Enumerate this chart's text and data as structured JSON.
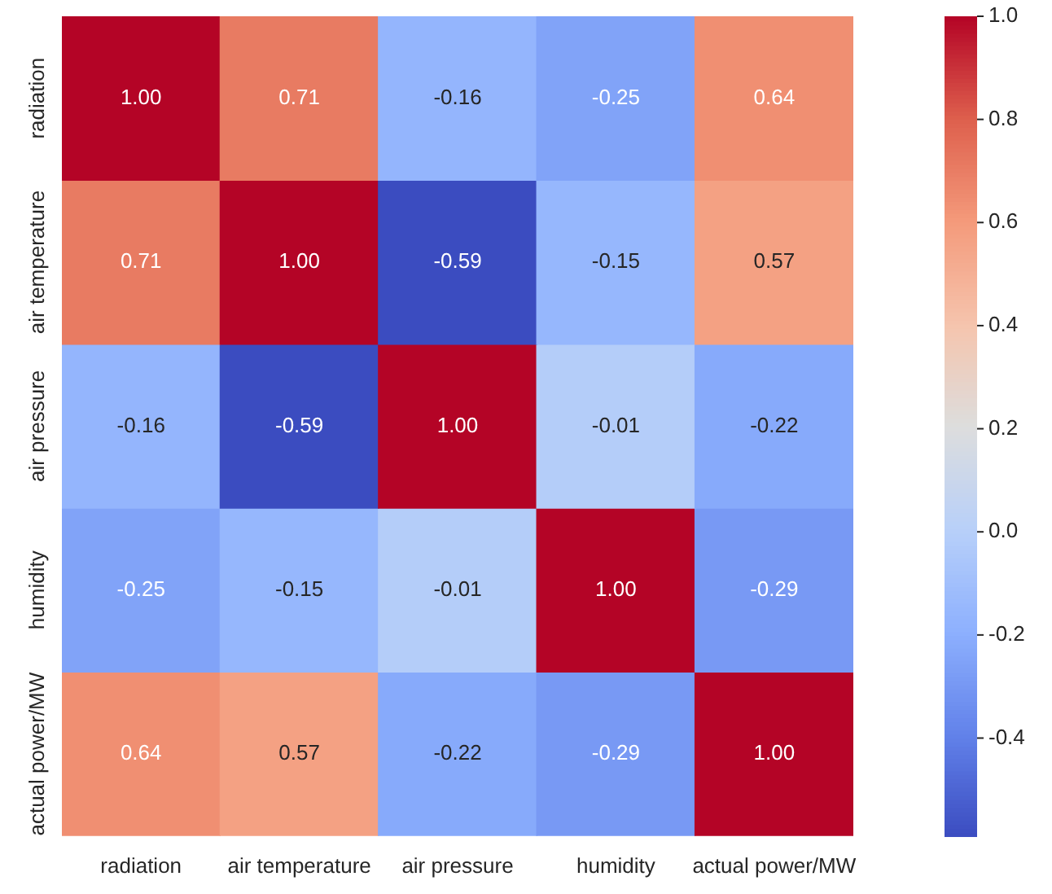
{
  "chart_data": {
    "type": "heatmap",
    "categories": [
      "radiation",
      "air temperature",
      "air pressure",
      "humidity",
      "actual power/MW"
    ],
    "y_categories": [
      "radiation",
      "air temperature",
      "air pressure",
      "humidity",
      "actual power/MW"
    ],
    "cells": [
      [
        1.0,
        0.71,
        -0.16,
        -0.25,
        0.64
      ],
      [
        0.71,
        1.0,
        -0.59,
        -0.15,
        0.57
      ],
      [
        -0.16,
        -0.59,
        1.0,
        -0.01,
        -0.22
      ],
      [
        -0.25,
        -0.15,
        -0.01,
        1.0,
        -0.29
      ],
      [
        0.64,
        0.57,
        -0.22,
        -0.29,
        1.0
      ]
    ],
    "cell_labels": [
      [
        "1.00",
        "0.71",
        "-0.16",
        "-0.25",
        "0.64"
      ],
      [
        "0.71",
        "1.00",
        "-0.59",
        "-0.15",
        "0.57"
      ],
      [
        "-0.16",
        "-0.59",
        "1.00",
        "-0.01",
        "-0.22"
      ],
      [
        "-0.25",
        "-0.15",
        "-0.01",
        "1.00",
        "-0.29"
      ],
      [
        "0.64",
        "0.57",
        "-0.22",
        "-0.29",
        "1.00"
      ]
    ],
    "clim": [
      -0.59,
      1.0
    ],
    "cticks": [
      -0.4,
      -0.2,
      {
        "value": 0,
        "label": "0.0"
      },
      0.2,
      0.4,
      0.6,
      0.8,
      {
        "value": 1,
        "label": "1.0"
      }
    ]
  }
}
